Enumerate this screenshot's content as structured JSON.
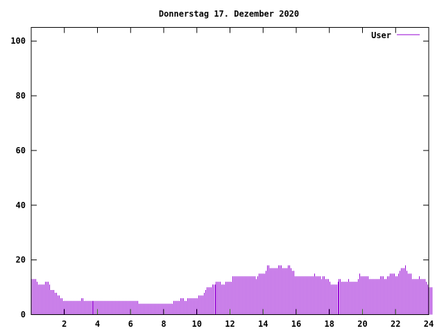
{
  "chart_data": {
    "type": "bar",
    "title": "Donnerstag 17. Dezember 2020",
    "xlabel": "",
    "ylabel": "",
    "xlim": [
      0,
      24
    ],
    "ylim": [
      0,
      105
    ],
    "grid": false,
    "legend_position": "top-right",
    "x_ticks": [
      "2",
      "4",
      "6",
      "8",
      "10",
      "12",
      "14",
      "16",
      "18",
      "20",
      "22",
      "24"
    ],
    "y_ticks": [
      "0",
      "20",
      "40",
      "60",
      "80",
      "100"
    ],
    "series": [
      {
        "name": "User",
        "color": "#9400d3",
        "interval_hours": 0.0833,
        "values": [
          13,
          13,
          13,
          13,
          12,
          11,
          11,
          11,
          11,
          11,
          12,
          12,
          12,
          11,
          9,
          9,
          9,
          8,
          8,
          7,
          7,
          6,
          6,
          5,
          5,
          5,
          5,
          5,
          5,
          5,
          5,
          5,
          5,
          5,
          5,
          5,
          6,
          6,
          5,
          5,
          5,
          5,
          5,
          5,
          5,
          5,
          5,
          5,
          5,
          5,
          5,
          5,
          5,
          5,
          5,
          5,
          5,
          5,
          5,
          5,
          5,
          5,
          5,
          5,
          5,
          5,
          5,
          5,
          5,
          5,
          5,
          5,
          5,
          5,
          5,
          5,
          5,
          5,
          4,
          4,
          4,
          4,
          4,
          4,
          4,
          4,
          4,
          4,
          4,
          4,
          4,
          4,
          4,
          4,
          4,
          4,
          4,
          4,
          4,
          4,
          4,
          4,
          4,
          5,
          5,
          5,
          5,
          5,
          6,
          6,
          6,
          5,
          5,
          6,
          6,
          6,
          6,
          6,
          6,
          6,
          6,
          7,
          7,
          7,
          7,
          8,
          9,
          10,
          10,
          10,
          10,
          11,
          11,
          11,
          12,
          12,
          12,
          12,
          11,
          11,
          11,
          12,
          12,
          12,
          12,
          12,
          14,
          14,
          14,
          14,
          14,
          14,
          14,
          14,
          14,
          14,
          14,
          14,
          14,
          14,
          14,
          14,
          14,
          13,
          14,
          15,
          15,
          15,
          15,
          15,
          16,
          18,
          18,
          17,
          17,
          17,
          17,
          17,
          17,
          18,
          18,
          18,
          17,
          17,
          17,
          17,
          18,
          18,
          17,
          16,
          16,
          14,
          14,
          14,
          14,
          14,
          14,
          14,
          14,
          14,
          14,
          14,
          14,
          14,
          14,
          15,
          14,
          14,
          14,
          14,
          13,
          14,
          14,
          13,
          13,
          13,
          12,
          11,
          11,
          11,
          11,
          11,
          12,
          13,
          13,
          12,
          12,
          12,
          12,
          12,
          13,
          12,
          12,
          12,
          12,
          12,
          12,
          13,
          15,
          14,
          14,
          14,
          14,
          14,
          14,
          13,
          13,
          13,
          13,
          13,
          13,
          13,
          13,
          14,
          14,
          14,
          13,
          13,
          14,
          14,
          15,
          15,
          15,
          15,
          14,
          14,
          15,
          16,
          17,
          17,
          17,
          18,
          16,
          15,
          15,
          15,
          13,
          13,
          13,
          13,
          13,
          14,
          13,
          13,
          13,
          13,
          12,
          11,
          10,
          10,
          10
        ]
      }
    ]
  }
}
